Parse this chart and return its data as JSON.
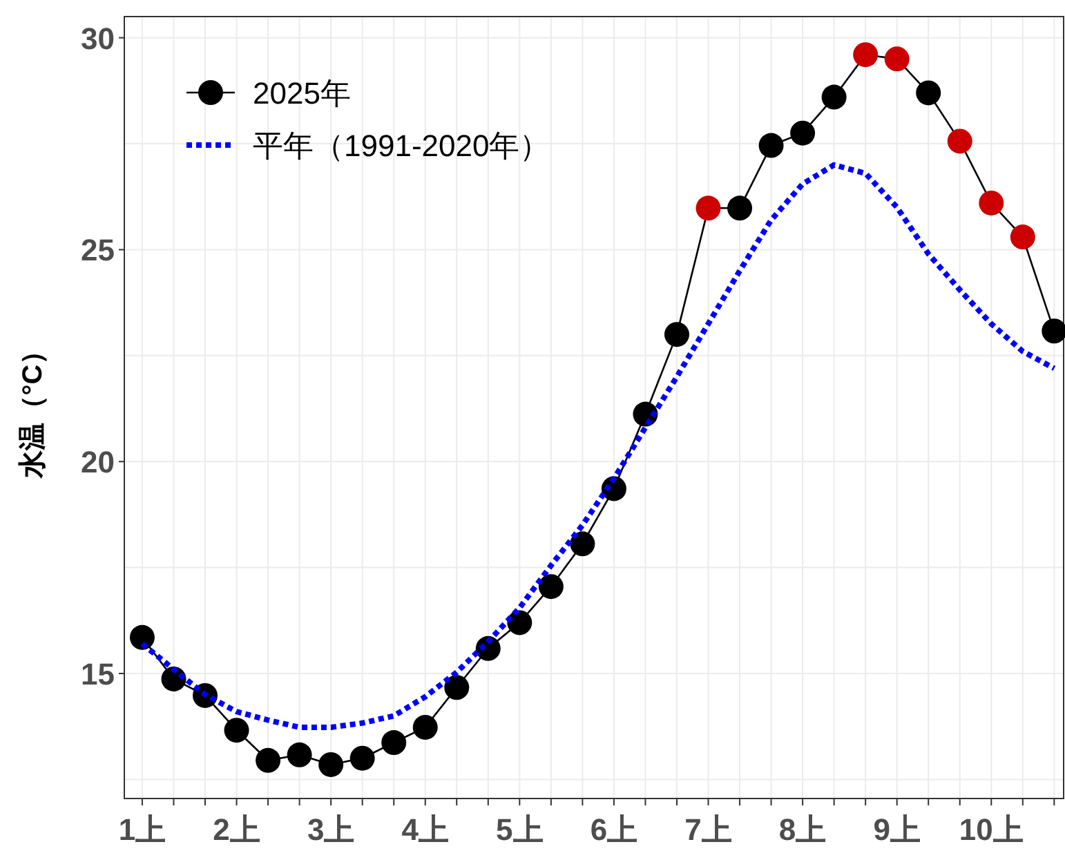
{
  "chart_data": {
    "type": "line",
    "ylabel": "水温（°C）",
    "categories": [
      "1上",
      null,
      null,
      "2上",
      null,
      null,
      "3上",
      null,
      null,
      "4上",
      null,
      null,
      "5上",
      null,
      null,
      "6上",
      null,
      null,
      "7上",
      null,
      null,
      "8上",
      null,
      null,
      "9上",
      null,
      null,
      "10上",
      null,
      null
    ],
    "series": [
      {
        "name": "2025年",
        "color": "#000000",
        "marker": "circle",
        "line_style": "solid",
        "values": [
          15.85,
          14.87,
          14.48,
          13.66,
          12.95,
          13.08,
          12.85,
          13.0,
          13.37,
          13.73,
          14.67,
          15.59,
          16.2,
          17.05,
          18.06,
          19.36,
          21.12,
          23.0,
          25.98,
          25.98,
          27.46,
          27.75,
          28.6,
          29.6,
          29.5,
          28.7,
          27.56,
          26.1,
          25.3,
          23.08
        ],
        "colors": [
          "#000000",
          "#000000",
          "#000000",
          "#000000",
          "#000000",
          "#000000",
          "#000000",
          "#000000",
          "#000000",
          "#000000",
          "#000000",
          "#000000",
          "#000000",
          "#000000",
          "#000000",
          "#000000",
          "#000000",
          "#000000",
          "#cc0000",
          "#000000",
          "#000000",
          "#000000",
          "#000000",
          "#cc0000",
          "#cc0000",
          "#000000",
          "#cc0000",
          "#cc0000",
          "#cc0000",
          "#000000"
        ]
      },
      {
        "name": "平年（1991-2020年）",
        "color": "#0000ff",
        "marker": "none",
        "line_style": "dotted",
        "values": [
          15.7,
          15.1,
          14.5,
          14.1,
          13.9,
          13.73,
          13.73,
          13.83,
          14.0,
          14.45,
          15.03,
          15.75,
          16.55,
          17.55,
          18.5,
          19.6,
          20.8,
          22.0,
          23.25,
          24.5,
          25.7,
          26.55,
          27.0,
          26.8,
          26.0,
          24.9,
          24.05,
          23.25,
          22.6,
          22.2
        ]
      }
    ],
    "ylim": [
      12.05,
      30.5
    ],
    "yticks": [
      15,
      20,
      25,
      30
    ],
    "grid": true,
    "legend": "top left"
  }
}
